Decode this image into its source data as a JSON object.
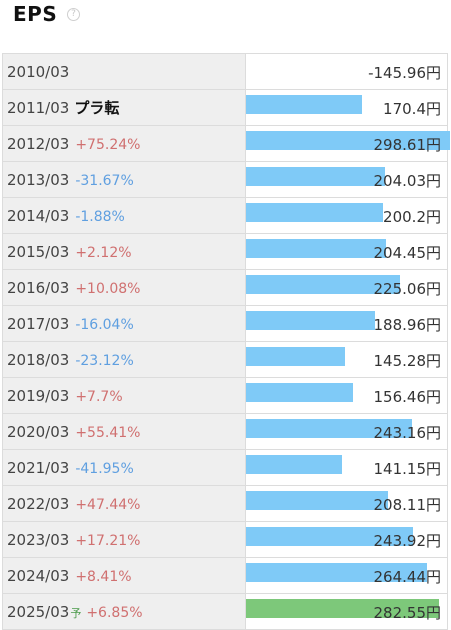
{
  "header": {
    "title": "EPS",
    "help": "?"
  },
  "colors": {
    "bar": "#7fcaf7",
    "forecast_bar": "#7dc87a",
    "up": "#d07070",
    "down": "#5f9fe0"
  },
  "rows": [
    {
      "year": "2010/03",
      "change": "",
      "dir": "",
      "tag": "",
      "forecast": "",
      "value": "-145.96円",
      "eps": -145.96
    },
    {
      "year": "2011/03",
      "change": "",
      "dir": "",
      "tag": "プラ転",
      "forecast": "",
      "value": "170.4円",
      "eps": 170.4
    },
    {
      "year": "2012/03",
      "change": "+75.24%",
      "dir": "up",
      "tag": "",
      "forecast": "",
      "value": "298.61円",
      "eps": 298.61
    },
    {
      "year": "2013/03",
      "change": "-31.67%",
      "dir": "down",
      "tag": "",
      "forecast": "",
      "value": "204.03円",
      "eps": 204.03
    },
    {
      "year": "2014/03",
      "change": "-1.88%",
      "dir": "down",
      "tag": "",
      "forecast": "",
      "value": "200.2円",
      "eps": 200.2
    },
    {
      "year": "2015/03",
      "change": "+2.12%",
      "dir": "up",
      "tag": "",
      "forecast": "",
      "value": "204.45円",
      "eps": 204.45
    },
    {
      "year": "2016/03",
      "change": "+10.08%",
      "dir": "up",
      "tag": "",
      "forecast": "",
      "value": "225.06円",
      "eps": 225.06
    },
    {
      "year": "2017/03",
      "change": "-16.04%",
      "dir": "down",
      "tag": "",
      "forecast": "",
      "value": "188.96円",
      "eps": 188.96
    },
    {
      "year": "2018/03",
      "change": "-23.12%",
      "dir": "down",
      "tag": "",
      "forecast": "",
      "value": "145.28円",
      "eps": 145.28
    },
    {
      "year": "2019/03",
      "change": "+7.7%",
      "dir": "up",
      "tag": "",
      "forecast": "",
      "value": "156.46円",
      "eps": 156.46
    },
    {
      "year": "2020/03",
      "change": "+55.41%",
      "dir": "up",
      "tag": "",
      "forecast": "",
      "value": "243.16円",
      "eps": 243.16
    },
    {
      "year": "2021/03",
      "change": "-41.95%",
      "dir": "down",
      "tag": "",
      "forecast": "",
      "value": "141.15円",
      "eps": 141.15
    },
    {
      "year": "2022/03",
      "change": "+47.44%",
      "dir": "up",
      "tag": "",
      "forecast": "",
      "value": "208.11円",
      "eps": 208.11
    },
    {
      "year": "2023/03",
      "change": "+17.21%",
      "dir": "up",
      "tag": "",
      "forecast": "",
      "value": "243.92円",
      "eps": 243.92
    },
    {
      "year": "2024/03",
      "change": "+8.41%",
      "dir": "up",
      "tag": "",
      "forecast": "",
      "value": "264.44円",
      "eps": 264.44
    },
    {
      "year": "2025/03",
      "change": "+6.85%",
      "dir": "up",
      "tag": "",
      "forecast": "予",
      "value": "282.55円",
      "eps": 282.55
    }
  ]
}
